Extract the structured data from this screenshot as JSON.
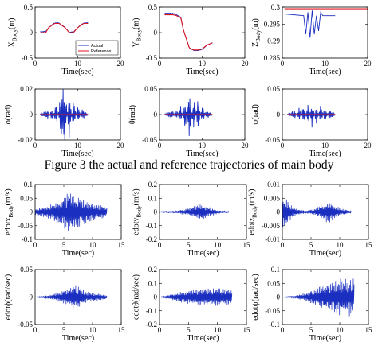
{
  "caption": "Figure 3 the actual and reference trajectories of main body",
  "colors": {
    "actual": "#1a2fbf",
    "reference": "#e0141e",
    "axis": "#000000"
  },
  "chart_data": [
    {
      "type": "line",
      "ylabel": "X_Body(m)",
      "xlabel": "Time(sec)",
      "xlim": [
        0,
        20
      ],
      "ylim": [
        -0.5,
        0.5
      ],
      "xticks": [
        "0",
        "10",
        "20"
      ],
      "yticks": [
        "-0.5",
        "0",
        "0.5"
      ],
      "legend": {
        "position": "lower-right",
        "entries": [
          "Actual",
          "Reference"
        ]
      },
      "series": [
        {
          "name": "Actual",
          "x": [
            1.2,
            2.5,
            3.2,
            4.6,
            5.6,
            7.0,
            8.0,
            9.0,
            10.0,
            11.4,
            12.4
          ],
          "y": [
            0.02,
            0.02,
            0.1,
            0.19,
            0.19,
            0.1,
            0.01,
            0.01,
            0.1,
            0.19,
            0.19
          ]
        },
        {
          "name": "Reference",
          "x": [
            1.2,
            2.5,
            3.2,
            4.6,
            5.6,
            7.0,
            8.0,
            9.0,
            10.0,
            11.4,
            12.4
          ],
          "y": [
            0.0,
            0.0,
            0.1,
            0.18,
            0.18,
            0.1,
            0.0,
            0.0,
            0.1,
            0.18,
            0.18
          ]
        }
      ]
    },
    {
      "type": "line",
      "ylabel": "Y_Body(m)",
      "xlabel": "Time(sec)",
      "xlim": [
        0,
        20
      ],
      "ylim": [
        -0.5,
        0.5
      ],
      "xticks": [
        "0",
        "10",
        "20"
      ],
      "yticks": [
        "-0.5",
        "0",
        "0.5"
      ],
      "series": [
        {
          "name": "Actual",
          "x": [
            1.2,
            3.2,
            3.8,
            5.0,
            5.6,
            7.0,
            8.0,
            9.0,
            10.0,
            11.0,
            12.4
          ],
          "y": [
            0.38,
            0.38,
            0.36,
            0.3,
            0.05,
            -0.3,
            -0.35,
            -0.35,
            -0.33,
            -0.25,
            -0.2
          ]
        },
        {
          "name": "Reference",
          "x": [
            1.2,
            3.2,
            3.8,
            5.0,
            5.6,
            7.0,
            8.0,
            9.0,
            10.0,
            11.0,
            12.4
          ],
          "y": [
            0.35,
            0.35,
            0.34,
            0.29,
            0.05,
            -0.3,
            -0.34,
            -0.34,
            -0.32,
            -0.25,
            -0.2
          ]
        }
      ]
    },
    {
      "type": "line",
      "ylabel": "Z_Body(m)",
      "xlabel": "Time(sec)",
      "xlim": [
        0,
        20
      ],
      "ylim": [
        0.285,
        0.3
      ],
      "xticks": [
        "0",
        "10",
        "20"
      ],
      "yticks": [
        "0.285",
        "0.29",
        "0.295",
        "0.3"
      ],
      "series": [
        {
          "name": "Actual",
          "x": [
            0.5,
            5.0,
            5.5,
            6.0,
            6.5,
            7.0,
            7.5,
            8.0,
            8.5,
            9.0,
            9.5,
            10.0,
            10.5,
            11.0,
            11.5,
            12.4
          ],
          "y": [
            0.298,
            0.2975,
            0.292,
            0.2985,
            0.291,
            0.299,
            0.292,
            0.2975,
            0.293,
            0.2985,
            0.2975,
            0.2975,
            0.2975,
            0.2975,
            0.2975,
            0.2975
          ]
        },
        {
          "name": "Reference",
          "x": [
            0.5,
            20.0
          ],
          "y": [
            0.2995,
            0.2995
          ]
        }
      ]
    },
    {
      "type": "line",
      "ylabel": "ϕ(rad)",
      "xlabel": "Time(sec)",
      "xlim": [
        0,
        20
      ],
      "ylim": [
        -0.02,
        0.02
      ],
      "xticks": [
        "0",
        "10",
        "20"
      ],
      "yticks": [
        "-0.02",
        "0",
        "0.02"
      ],
      "series": [
        {
          "name": "Actual",
          "x": [
            1.2,
            3.0,
            4.0,
            5.0,
            6.0,
            7.0,
            8.0,
            9.0,
            10.0,
            11.0,
            12.4
          ],
          "y": [
            0.0,
            -0.002,
            0.003,
            -0.005,
            0.008,
            0.012,
            -0.01,
            0.006,
            -0.004,
            0.002,
            0.0
          ]
        },
        {
          "name": "Reference",
          "x": [
            1.2,
            12.4
          ],
          "y": [
            0.0,
            0.0
          ]
        }
      ]
    },
    {
      "type": "line",
      "ylabel": "θ(rad)",
      "xlabel": "Time(sec)",
      "xlim": [
        0,
        20
      ],
      "ylim": [
        -0.05,
        0.05
      ],
      "xticks": [
        "0",
        "10",
        "20"
      ],
      "yticks": [
        "-0.05",
        "0",
        "0.05"
      ],
      "series": [
        {
          "name": "Actual",
          "x": [
            1.2,
            3.0,
            4.0,
            5.0,
            6.0,
            7.0,
            8.0,
            9.0,
            10.0,
            11.0,
            12.4
          ],
          "y": [
            0.0,
            -0.004,
            0.005,
            -0.01,
            0.02,
            -0.035,
            0.02,
            -0.018,
            0.01,
            -0.005,
            0.0
          ]
        },
        {
          "name": "Reference",
          "x": [
            1.2,
            12.4
          ],
          "y": [
            0.0,
            0.0
          ]
        }
      ]
    },
    {
      "type": "line",
      "ylabel": "ψ(rad)",
      "xlabel": "Time(sec)",
      "xlim": [
        0,
        20
      ],
      "ylim": [
        -0.05,
        0.05
      ],
      "xticks": [
        "0",
        "10",
        "20"
      ],
      "yticks": [
        "-0.05",
        "0",
        "0.05"
      ],
      "series": [
        {
          "name": "Actual",
          "x": [
            1.2,
            3.0,
            4.0,
            5.0,
            6.0,
            7.0,
            8.0,
            9.0,
            10.0,
            11.0,
            12.4
          ],
          "y": [
            0.0,
            0.004,
            -0.008,
            0.01,
            -0.012,
            0.014,
            -0.01,
            0.012,
            -0.01,
            0.006,
            0.0
          ]
        },
        {
          "name": "Reference",
          "x": [
            1.2,
            12.4
          ],
          "y": [
            0.0,
            0.0
          ]
        }
      ]
    },
    {
      "type": "line",
      "ylabel": "edotx_Body(m/s)",
      "xlabel": "Time(sec)",
      "xlim": [
        0,
        15
      ],
      "ylim": [
        -0.1,
        0.1
      ],
      "xticks": [
        "0",
        "5",
        "10",
        "15"
      ],
      "yticks": [
        "-0.1",
        "-0.05",
        "0",
        "0.05",
        "0.1"
      ],
      "envelope": {
        "t": [
          0,
          3,
          6,
          8,
          10,
          12.5
        ],
        "amp": [
          0.01,
          0.03,
          0.08,
          0.06,
          0.035,
          0.02
        ]
      }
    },
    {
      "type": "line",
      "ylabel": "edoty_Body(m/s)",
      "xlabel": "Time(sec)",
      "xlim": [
        0,
        15
      ],
      "ylim": [
        -0.2,
        0.2
      ],
      "xticks": [
        "0",
        "5",
        "10",
        "15"
      ],
      "yticks": [
        "-0.2",
        "-0.1",
        "0",
        "0.1",
        "0.2"
      ],
      "envelope": {
        "t": [
          0,
          3,
          5,
          7,
          9,
          10.5,
          12
        ],
        "amp": [
          0.002,
          0.01,
          0.03,
          0.07,
          0.03,
          0.01,
          0.005
        ]
      }
    },
    {
      "type": "line",
      "ylabel": "edotz_Body(m/s)",
      "xlabel": "Time(sec)",
      "xlim": [
        0,
        15
      ],
      "ylim": [
        -0.01,
        0.01
      ],
      "xticks": [
        "0",
        "5",
        "10",
        "15"
      ],
      "yticks": [
        "-0.01",
        "-0.005",
        "0",
        "0.005",
        "0.01"
      ],
      "envelope": {
        "t": [
          0,
          1,
          2,
          4,
          6,
          8,
          10,
          12
        ],
        "amp": [
          0.0075,
          0.004,
          0.0015,
          0.0005,
          0.0015,
          0.0045,
          0.0015,
          0.0005
        ]
      }
    },
    {
      "type": "line",
      "ylabel": "edotϕ(rad/sec)",
      "xlabel": "Time(sec)",
      "xlim": [
        0,
        15
      ],
      "ylim": [
        -0.05,
        0.05
      ],
      "xticks": [
        "0",
        "5",
        "10",
        "15"
      ],
      "yticks": [
        "-0.05",
        "0",
        "0.05"
      ],
      "envelope": {
        "t": [
          0,
          2.5,
          5,
          7,
          9,
          12.5
        ],
        "amp": [
          0.0,
          0.004,
          0.012,
          0.025,
          0.01,
          0.004
        ]
      }
    },
    {
      "type": "line",
      "ylabel": "edotθ(rad/sec)",
      "xlabel": "Time(sec)",
      "xlim": [
        0,
        15
      ],
      "ylim": [
        -0.2,
        0.2
      ],
      "xticks": [
        "0",
        "5",
        "10",
        "15"
      ],
      "yticks": [
        "-0.2",
        "-0.1",
        "0",
        "0.1",
        "0.2"
      ],
      "envelope": {
        "t": [
          0,
          2,
          4,
          6,
          8,
          10,
          12.5
        ],
        "amp": [
          0.0,
          0.02,
          0.045,
          0.06,
          0.07,
          0.065,
          0.06
        ]
      }
    },
    {
      "type": "line",
      "ylabel": "edotψ(rad/sec)",
      "xlabel": "Time(sec)",
      "xlim": [
        0,
        15
      ],
      "ylim": [
        -0.1,
        0.1
      ],
      "xticks": [
        "0",
        "5",
        "10",
        "15"
      ],
      "yticks": [
        "-0.1",
        "-0.05",
        "0",
        "0.05",
        "0.1"
      ],
      "envelope": {
        "t": [
          0,
          2,
          4,
          6,
          8,
          10,
          12.5
        ],
        "amp": [
          0.0,
          0.005,
          0.015,
          0.035,
          0.055,
          0.07,
          0.07
        ]
      }
    }
  ]
}
